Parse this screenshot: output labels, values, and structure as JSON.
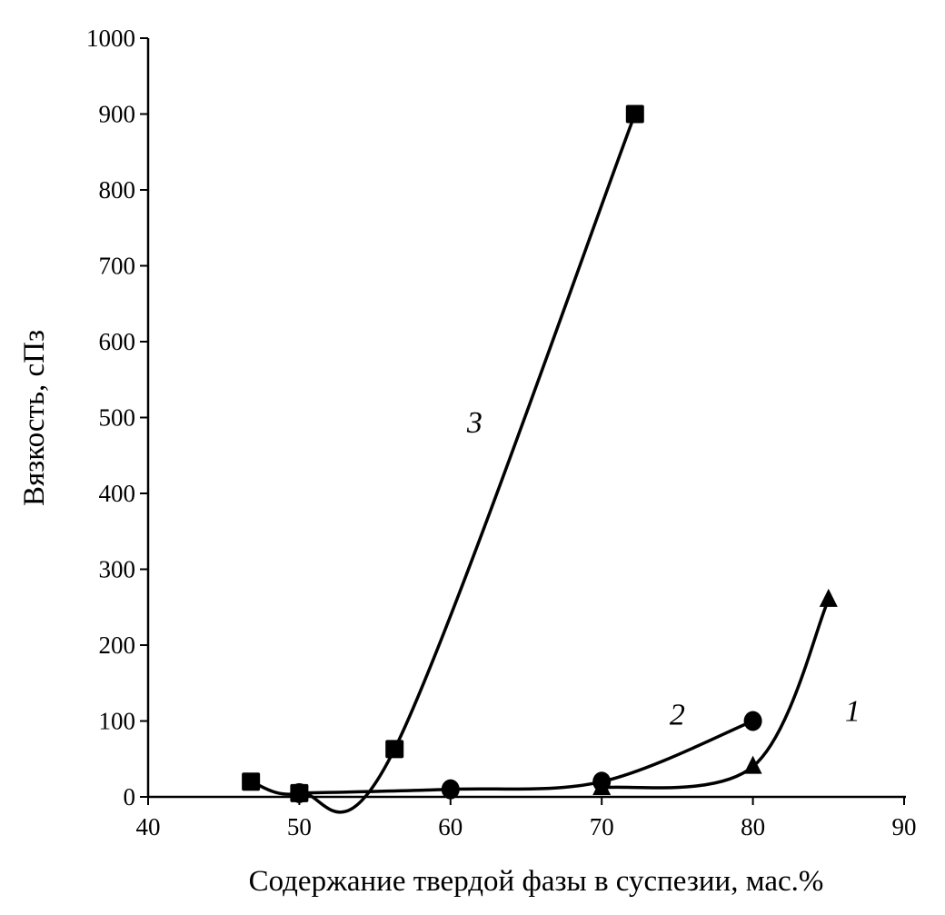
{
  "chart_data": {
    "type": "line",
    "title": "",
    "xlabel": "Содержание твердой фазы в суспезии, мас.%",
    "ylabel": "Вязкость, сПз",
    "xlim": [
      40,
      90
    ],
    "ylim": [
      0,
      1000
    ],
    "xticks": [
      40,
      50,
      60,
      70,
      80,
      90
    ],
    "yticks": [
      0,
      100,
      200,
      300,
      400,
      500,
      600,
      700,
      800,
      900,
      1000
    ],
    "grid": false,
    "smooth": true,
    "color": "#000000",
    "series": [
      {
        "label": "1",
        "marker": "triangle",
        "x": [
          70,
          80,
          85
        ],
        "y": [
          12,
          40,
          260
        ],
        "label_at": [
          86.6,
          100
        ]
      },
      {
        "label": "2",
        "marker": "circle",
        "x": [
          50,
          60,
          70,
          80
        ],
        "y": [
          5,
          10,
          20,
          100
        ],
        "label_at": [
          75,
          95
        ]
      },
      {
        "label": "3",
        "marker": "square",
        "x": [
          46.8,
          50,
          56.3,
          72.2
        ],
        "y": [
          20,
          5,
          63,
          900
        ],
        "label_at": [
          61.6,
          480
        ]
      }
    ]
  }
}
